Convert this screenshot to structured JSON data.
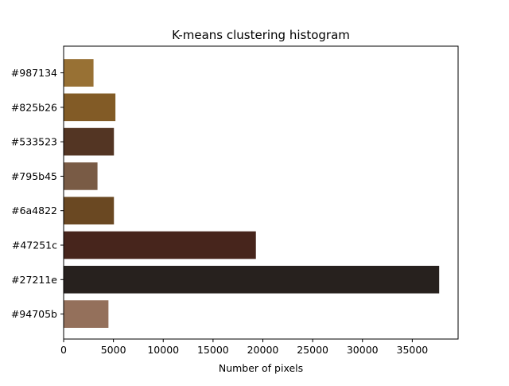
{
  "chart_data": {
    "type": "bar",
    "orientation": "horizontal",
    "title": "K-means clustering histogram",
    "xlabel": "Number of pixels",
    "ylabel": "",
    "categories": [
      "#987134",
      "#825b26",
      "#533523",
      "#795b45",
      "#6a4822",
      "#47251c",
      "#27211e",
      "#94705b"
    ],
    "values": [
      3000,
      5200,
      5050,
      3400,
      5050,
      19300,
      37700,
      4500
    ],
    "bar_colors": [
      "#987134",
      "#825b26",
      "#533523",
      "#795b45",
      "#6a4822",
      "#47251c",
      "#27211e",
      "#94705b"
    ],
    "xlim": [
      0,
      39600
    ],
    "xticks": [
      0,
      5000,
      10000,
      15000,
      20000,
      25000,
      30000,
      35000
    ],
    "xtick_labels": [
      "0",
      "5000",
      "10000",
      "15000",
      "20000",
      "25000",
      "30000",
      "35000"
    ],
    "grid": false,
    "legend": "none"
  }
}
